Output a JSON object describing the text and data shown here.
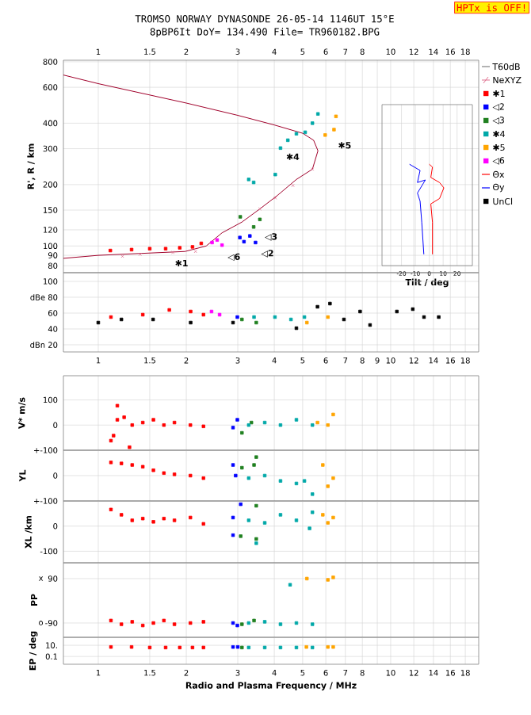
{
  "chart_data": [
    {
      "type": "scatter",
      "title": "TROMSO NORWAY   DYNASONDE 26-05-14 1146UT 15°E",
      "subtitle": "8pBP6It DoY= 134.490 File= TR960182.BPG",
      "ylabel": "R', R / km",
      "log": "xy",
      "xlim": [
        0.76,
        20
      ],
      "xticks": [
        1,
        1.5,
        2,
        3,
        4,
        5,
        6,
        7,
        8,
        {
          "value": 9,
          "label": null
        },
        10,
        12,
        14,
        16,
        18
      ],
      "ylim": [
        74,
        814
      ],
      "yticks": [
        80,
        90,
        100,
        120,
        150,
        200,
        300,
        400,
        600,
        800
      ],
      "grid": true,
      "legend": "right",
      "annotations": [
        "HPTx is OFF!",
        "T60dB",
        {
          "text": "✱1",
          "x": 1.75,
          "y": 91
        },
        {
          "text": "◁6",
          "x": 2.65,
          "y": 98
        },
        {
          "text": "◁2",
          "x": 3.45,
          "y": 102
        },
        {
          "text": "◁3",
          "x": 3.55,
          "y": 123
        },
        {
          "text": "✱4",
          "x": 4.2,
          "y": 302
        },
        {
          "text": "✱5",
          "x": 6.32,
          "y": 344
        }
      ],
      "series": [
        {
          "type": "line",
          "color": "#a0002a",
          "x": [
            0.76,
            1,
            2,
            3,
            4,
            5.0,
            5.45,
            5.64,
            5.4,
            4.76,
            4.1,
            3.57,
            3.1,
            2.65,
            2.34,
            1.98,
            1,
            0.76
          ],
          "values": [
            689,
            625,
            502,
            437,
            392,
            357,
            330,
            293,
            238,
            212,
            177,
            152,
            131,
            116,
            100,
            94,
            90,
            87
          ]
        },
        {
          "type": "scatter",
          "name": "NeXYZ",
          "marker": "cross",
          "color": "#e07090",
          "x": [
            1.21,
            1.39,
            1.8,
            2.15,
            3.57,
            4.03,
            4.63,
            5.4
          ],
          "values": [
            89,
            91,
            93,
            94,
            152,
            172,
            198,
            238
          ]
        },
        {
          "type": "scatter",
          "marker": "square",
          "name": "✱1",
          "color": "#ff0000",
          "x": [
            1.1,
            1.3,
            1.5,
            1.7,
            1.9,
            2.1,
            2.25
          ],
          "values": [
            95,
            96,
            97,
            97,
            98,
            99,
            103
          ]
        },
        {
          "type": "scatter",
          "marker": "square",
          "name": "◁2",
          "color": "#0000ff",
          "x": [
            3.05,
            3.15,
            3.3,
            3.45
          ],
          "values": [
            110,
            105,
            112,
            104
          ]
        },
        {
          "type": "scatter",
          "marker": "square",
          "name": "◁3",
          "color": "#208020",
          "x": [
            3.06,
            3.4,
            3.57
          ],
          "values": [
            139,
            124,
            135
          ]
        },
        {
          "type": "scatter",
          "marker": "square",
          "name": "✱4",
          "color": "#00a8a8",
          "x": [
            3.27,
            3.4,
            4.03,
            4.2,
            4.45,
            4.76,
            5.1,
            5.4,
            5.64
          ],
          "values": [
            212,
            205,
            224,
            302,
            330,
            355,
            361,
            400,
            444
          ]
        },
        {
          "type": "scatter",
          "marker": "square",
          "name": "✱5",
          "color": "#ffa500",
          "x": [
            5.97,
            6.4,
            6.5
          ],
          "values": [
            350,
            372,
            432
          ]
        },
        {
          "type": "scatter",
          "marker": "square",
          "name": "◁6",
          "color": "#ff00ff",
          "x": [
            2.45,
            2.55,
            2.65
          ],
          "values": [
            104,
            107,
            101
          ]
        }
      ]
    },
    {
      "type": "line",
      "xlabel": "Tilt / deg",
      "log": "y",
      "legend": "right",
      "xlim": [
        -34,
        31
      ],
      "xticks": [
        -20,
        -10,
        0,
        10,
        20
      ],
      "ylim": [
        80,
        800
      ],
      "yticks": [
        80,
        90,
        100,
        120,
        150,
        200,
        300,
        400,
        600,
        800
      ],
      "grid": "x",
      "tick_labels": "x",
      "series": [
        {
          "name": "Θx",
          "color": "#ff0000",
          "x": [
            0,
            2.3,
            1.1,
            7.4,
            10.5,
            7.4,
            1.1,
            2.3,
            2.3
          ],
          "values": [
            252,
            244,
            217,
            205,
            193,
            171,
            161,
            131,
            91
          ]
        },
        {
          "name": "Θy",
          "color": "#0000ff",
          "x": [
            -14.2,
            -6.6,
            -8.5,
            -2.8,
            -8.5,
            -6.6,
            -5.4,
            -3.9
          ],
          "values": [
            252,
            235,
            205,
            211,
            182,
            166,
            131,
            91
          ]
        }
      ]
    },
    {
      "type": "scatter",
      "log": "x",
      "xlim": [
        0.76,
        20
      ],
      "xticks": [
        1,
        1.5,
        2,
        3,
        4,
        5,
        6,
        7,
        8,
        9,
        10,
        12,
        14,
        16,
        18
      ],
      "ylim": [
        11,
        111
      ],
      "yticks": [
        {
          "value": 20,
          "label": "dBn 20"
        },
        40,
        60,
        {
          "value": 80,
          "label": "dBe 80"
        },
        100
      ],
      "grid": true,
      "marker": "square",
      "legend": "right",
      "series": [
        {
          "name": "UnCl",
          "color": "#000000",
          "x": [
            1.0,
            1.2,
            1.54,
            2.07,
            2.89,
            4.76,
            5.62,
            6.2,
            6.92,
            7.86,
            8.5,
            10.5,
            11.9,
            13,
            14.6
          ],
          "values": [
            48,
            52,
            52,
            48,
            48,
            41,
            68,
            72,
            52,
            62,
            45,
            62,
            65,
            55,
            55
          ]
        },
        {
          "color": "#ff0000",
          "x": [
            1.105,
            1.42,
            1.75,
            2.07,
            2.29
          ],
          "values": [
            55,
            58,
            64,
            62,
            58
          ]
        },
        {
          "color": "#ff00ff",
          "x": [
            2.44,
            2.6
          ],
          "values": [
            62,
            58
          ]
        },
        {
          "color": "#0000ff",
          "x": [
            2.99
          ],
          "values": [
            55
          ]
        },
        {
          "color": "#208020",
          "x": [
            3.1,
            3.47
          ],
          "values": [
            52,
            48
          ]
        },
        {
          "color": "#00a8a8",
          "x": [
            3.41,
            4.02,
            4.56,
            5.07
          ],
          "values": [
            55,
            55,
            52,
            55
          ]
        },
        {
          "color": "#ffa500",
          "x": [
            5.17,
            6.1
          ],
          "values": [
            48,
            55
          ]
        }
      ]
    },
    {
      "type": "scatter",
      "ylabel": "V* m/s",
      "log": "x",
      "xlim": [
        0.76,
        20
      ],
      "xticks": [
        1,
        1.5,
        2,
        3,
        4,
        5,
        6,
        7,
        8,
        9,
        10,
        12,
        14,
        16,
        18
      ],
      "ylim": [
        -100,
        196
      ],
      "yticks": [
        {
          "value": -100,
          "label": "+-100"
        },
        0,
        100
      ],
      "grid": true,
      "tick_labels": "y",
      "marker": "square",
      "series": [
        {
          "color": "#ff0000",
          "x": [
            1.105,
            1.128,
            1.162,
            1.162,
            1.226,
            1.279,
            1.306,
            1.42,
            1.544,
            1.677,
            1.822,
            2.066,
            2.29
          ],
          "values": [
            -62,
            -42,
            21,
            77,
            31,
            -88,
            0,
            10,
            21,
            0,
            10,
            0,
            -5
          ]
        },
        {
          "color": "#0000ff",
          "x": [
            2.89,
            2.99
          ],
          "values": [
            -10,
            21
          ]
        },
        {
          "color": "#208020",
          "x": [
            3.1,
            3.34
          ],
          "values": [
            -31,
            10
          ]
        },
        {
          "color": "#00a8a8",
          "x": [
            3.27,
            3.71,
            4.2,
            4.76,
            5.4
          ],
          "values": [
            0,
            10,
            0,
            21,
            0
          ]
        },
        {
          "color": "#ffa500",
          "x": [
            5.62,
            6.1,
            6.36
          ],
          "values": [
            10,
            0,
            42
          ]
        }
      ]
    },
    {
      "type": "scatter",
      "ylabel": "YL",
      "log": "x",
      "xlim": [
        0.76,
        20
      ],
      "xticks": [
        1,
        1.5,
        2,
        3,
        4,
        5,
        6,
        7,
        8,
        9,
        10,
        12,
        14,
        16,
        18
      ],
      "ylim": [
        -100,
        100
      ],
      "yticks": [
        {
          "value": -100,
          "label": "+-100"
        },
        0
      ],
      "grid": true,
      "tick_labels": "y",
      "marker": "square",
      "series": [
        {
          "color": "#ff0000",
          "x": [
            1.105,
            1.2,
            1.306,
            1.42,
            1.544,
            1.677,
            1.822,
            2.066,
            2.29
          ],
          "values": [
            52,
            48,
            42,
            35,
            21,
            10,
            5,
            0,
            -10
          ]
        },
        {
          "color": "#0000ff",
          "x": [
            2.89,
            2.95
          ],
          "values": [
            42,
            0
          ]
        },
        {
          "color": "#208020",
          "x": [
            3.1,
            3.41,
            3.47
          ],
          "values": [
            31,
            42,
            73
          ]
        },
        {
          "color": "#00a8a8",
          "x": [
            3.27,
            3.71,
            4.2,
            4.76,
            5.07,
            5.4
          ],
          "values": [
            -10,
            0,
            -21,
            -31,
            -21,
            -73
          ]
        },
        {
          "color": "#ffa500",
          "x": [
            5.86,
            6.1,
            6.36
          ],
          "values": [
            42,
            -42,
            -10
          ]
        }
      ]
    },
    {
      "type": "scatter",
      "ylabel": "XL /km",
      "log": "x",
      "xlim": [
        0.76,
        20
      ],
      "xticks": [
        1,
        1.5,
        2,
        3,
        4,
        5,
        6,
        7,
        8,
        9,
        10,
        12,
        14,
        16,
        18
      ],
      "ylim": [
        -146,
        100
      ],
      "yticks": [
        -100,
        0
      ],
      "grid": true,
      "tick_labels": "y",
      "marker": "square",
      "series": [
        {
          "color": "#ff0000",
          "x": [
            1.105,
            1.2,
            1.306,
            1.42,
            1.544,
            1.677,
            1.822,
            2.066,
            2.29
          ],
          "values": [
            66,
            45,
            23,
            30,
            17,
            30,
            23,
            34,
            9
          ]
        },
        {
          "color": "#0000ff",
          "x": [
            2.89,
            2.89,
            3.07
          ],
          "values": [
            34,
            -36,
            87
          ]
        },
        {
          "color": "#208020",
          "x": [
            3.07,
            3.47,
            3.47
          ],
          "values": [
            -40,
            81,
            -51
          ]
        },
        {
          "color": "#00a8a8",
          "x": [
            3.27,
            3.47,
            3.71,
            4.2,
            4.76,
            5.28,
            5.4
          ],
          "values": [
            23,
            -68,
            13,
            45,
            23,
            -9,
            55
          ]
        },
        {
          "color": "#ffa500",
          "x": [
            5.86,
            6.1,
            6.36
          ],
          "values": [
            45,
            13,
            34
          ]
        }
      ]
    },
    {
      "type": "scatter",
      "ylabel": "PP",
      "log": "x",
      "xlim": [
        0.76,
        20
      ],
      "xticks": [
        1,
        1.5,
        2,
        3,
        4,
        5,
        6,
        7,
        8,
        9,
        10,
        12,
        14,
        16,
        18
      ],
      "ylim": [
        -148,
        154
      ],
      "yticks": [
        -90,
        90
      ],
      "annotations": [
        "o",
        "x"
      ],
      "grid": true,
      "tick_labels": "y",
      "marker": "square",
      "series": [
        {
          "color": "#ff0000",
          "x": [
            1.105,
            1.2,
            1.306,
            1.42,
            1.544,
            1.677,
            1.822,
            2.066,
            2.29
          ],
          "values": [
            -80,
            -95,
            -85,
            -100,
            -90,
            -80,
            -95,
            -90,
            -85
          ]
        },
        {
          "color": "#0000ff",
          "x": [
            2.89,
            2.99
          ],
          "values": [
            -90,
            -100
          ]
        },
        {
          "color": "#208020",
          "x": [
            3.1,
            3.41
          ],
          "values": [
            -95,
            -80
          ]
        },
        {
          "color": "#00a8a8",
          "x": [
            3.27,
            3.71,
            4.2,
            4.53,
            4.76,
            5.4
          ],
          "values": [
            -90,
            -85,
            -95,
            65,
            -90,
            -95
          ]
        },
        {
          "color": "#ffa500",
          "x": [
            5.17,
            6.1,
            6.36
          ],
          "values": [
            90,
            85,
            95
          ]
        }
      ]
    },
    {
      "type": "scatter",
      "ylabel": "EP / deg",
      "xlabel": "Radio and Plasma Frequency / MHz",
      "log": "xy",
      "xlim": [
        0.76,
        20
      ],
      "xticks": [
        1,
        1.5,
        2,
        3,
        4,
        5,
        6,
        7,
        8,
        {
          "value": 9,
          "label": null
        },
        10,
        12,
        14,
        16,
        18
      ],
      "ylim": [
        0.004,
        270
      ],
      "yticks": [
        {
          "value": 0.1,
          "label": "0.1"
        },
        {
          "value": 10,
          "label": "10."
        }
      ],
      "grid": true,
      "marker": "square",
      "series": [
        {
          "color": "#ff0000",
          "x": [
            1.105,
            1.3,
            1.5,
            1.7,
            1.9,
            2.1,
            2.29
          ],
          "values": [
            5,
            5,
            4,
            4,
            4,
            4,
            4
          ]
        },
        {
          "color": "#0000ff",
          "x": [
            2.89,
            3.0
          ],
          "values": [
            5,
            5
          ]
        },
        {
          "color": "#208020",
          "x": [
            3.1
          ],
          "values": [
            4
          ]
        },
        {
          "color": "#00a8a8",
          "x": [
            3.27,
            3.71,
            4.2,
            4.76,
            5.4
          ],
          "values": [
            4,
            4,
            4,
            4,
            4
          ]
        },
        {
          "color": "#ffa500",
          "x": [
            5.15,
            6.1,
            6.36
          ],
          "values": [
            5,
            5,
            5
          ]
        }
      ]
    }
  ]
}
